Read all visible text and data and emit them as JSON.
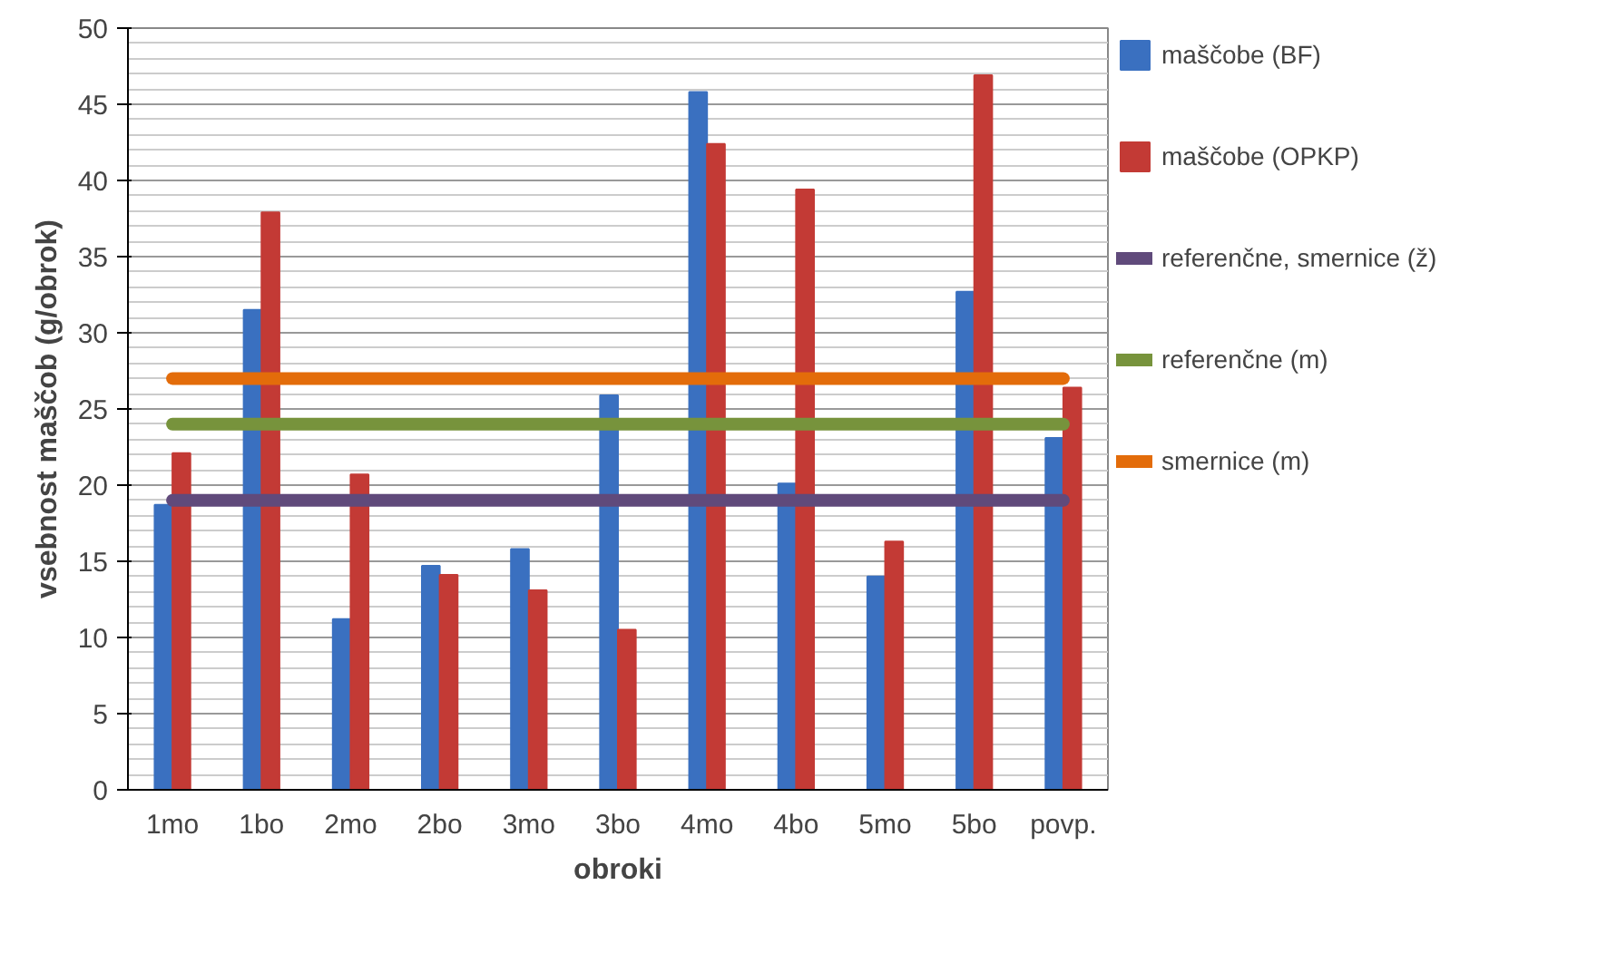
{
  "chart_data": {
    "type": "bar",
    "xlabel": "obroki",
    "ylabel": "vsebnost maščob (g/obrok)",
    "categories": [
      "1mo",
      "1bo",
      "2mo",
      "2bo",
      "3mo",
      "3bo",
      "4mo",
      "4bo",
      "5mo",
      "5bo",
      "povp."
    ],
    "series": [
      {
        "name": "maščobe (BF)",
        "color": "#3a70c0",
        "values": [
          18.7,
          31.5,
          11.2,
          14.7,
          15.8,
          25.9,
          45.8,
          20.1,
          14.0,
          32.7,
          23.1
        ]
      },
      {
        "name": "maščobe (OPKP)",
        "color": "#c33a35",
        "values": [
          22.1,
          37.9,
          20.7,
          14.1,
          13.1,
          10.5,
          42.4,
          39.4,
          16.3,
          46.9,
          26.4
        ]
      },
      {
        "name": "referenčne, smernice (ž)",
        "color": "#604a7b",
        "type": "line",
        "values": [
          19,
          19,
          19,
          19,
          19,
          19,
          19,
          19,
          19,
          19,
          19
        ]
      },
      {
        "name": "referenčne (m)",
        "color": "#77933c",
        "type": "line",
        "values": [
          24,
          24,
          24,
          24,
          24,
          24,
          24,
          24,
          24,
          24,
          24
        ]
      },
      {
        "name": "smernice (m)",
        "color": "#e36c0a",
        "type": "line",
        "values": [
          27,
          27,
          27,
          27,
          27,
          27,
          27,
          27,
          27,
          27,
          27
        ]
      }
    ],
    "ylim": [
      0,
      50
    ],
    "yticks": [
      0,
      5,
      10,
      15,
      20,
      25,
      30,
      35,
      40,
      45,
      50
    ],
    "grid": "y",
    "legend": "right"
  }
}
